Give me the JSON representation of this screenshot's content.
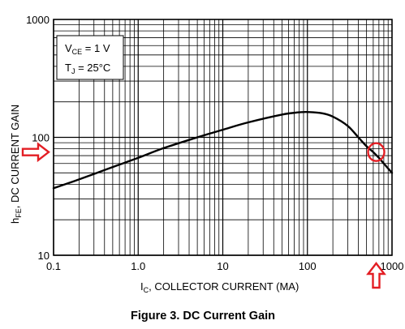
{
  "chart_data": {
    "type": "line",
    "title": "",
    "caption": "Figure 3. DC Current Gain",
    "xlabel": {
      "main": "I",
      "sub": "C",
      "rest": ", COLLECTOR CURRENT (MA)"
    },
    "ylabel": {
      "main": "h",
      "sub": "FE",
      "rest": ", DC CURRENT GAIN"
    },
    "x_scale": "log",
    "y_scale": "log",
    "xlim": [
      0.1,
      1000
    ],
    "ylim": [
      10,
      1000
    ],
    "x_ticks": [
      "0.1",
      "1.0",
      "10",
      "100",
      "1000"
    ],
    "y_ticks": [
      "10",
      "100",
      "1000"
    ],
    "grid": true,
    "conditions": [
      {
        "main": "V",
        "sub": "CE",
        "rest": " = 1 V"
      },
      {
        "main": "T",
        "sub": "J",
        "rest": " = 25°C"
      }
    ],
    "legend_placement": "top-left",
    "series": [
      {
        "x": [
          0.1,
          0.2,
          0.5,
          1,
          2,
          5,
          10,
          20,
          50,
          80,
          100,
          150,
          200,
          300,
          400,
          500,
          600,
          700,
          800,
          1000
        ],
        "y": [
          37,
          44,
          56,
          67,
          81,
          100,
          116,
          134,
          156,
          163,
          164,
          160,
          150,
          125,
          100,
          84,
          75,
          67,
          60,
          50
        ]
      }
    ],
    "annotations": [
      {
        "type": "circle-marker",
        "x": 650,
        "y": 75,
        "color": "#e31e24"
      },
      {
        "type": "arrow-right",
        "target_y": 75,
        "color": "#e31e24"
      },
      {
        "type": "arrow-up",
        "target_x": 650,
        "color": "#e31e24"
      }
    ]
  }
}
